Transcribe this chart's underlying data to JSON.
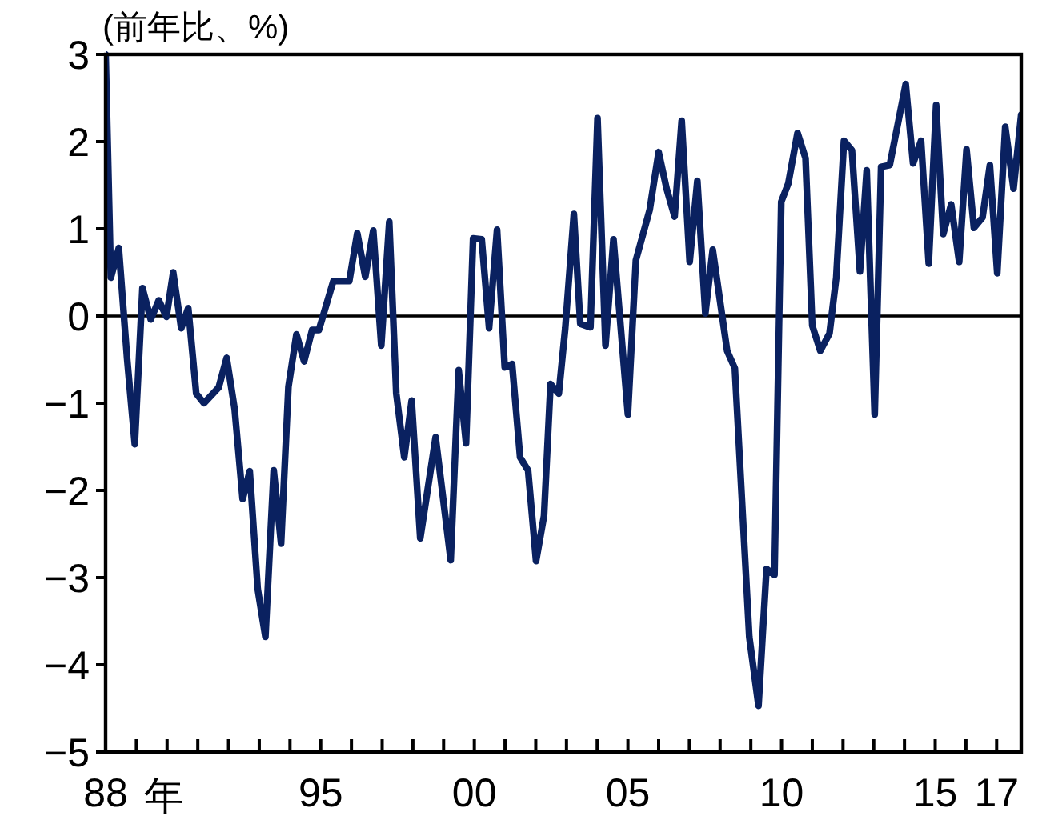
{
  "chart_data": {
    "type": "line",
    "ylabel": "(前年比、%)",
    "xlabel": "年",
    "xlim": [
      1988,
      2017.8
    ],
    "ylim": [
      -5,
      3
    ],
    "xticks": [
      {
        "value": 1988,
        "label": "88"
      },
      {
        "value": 1989,
        "label": null
      },
      {
        "value": 1990,
        "label": null
      },
      {
        "value": 1991,
        "label": null
      },
      {
        "value": 1992,
        "label": null
      },
      {
        "value": 1993,
        "label": null
      },
      {
        "value": 1994,
        "label": null
      },
      {
        "value": 1995,
        "label": "95"
      },
      {
        "value": 1996,
        "label": null
      },
      {
        "value": 1997,
        "label": null
      },
      {
        "value": 1998,
        "label": null
      },
      {
        "value": 1999,
        "label": null
      },
      {
        "value": 2000,
        "label": "00"
      },
      {
        "value": 2001,
        "label": null
      },
      {
        "value": 2002,
        "label": null
      },
      {
        "value": 2003,
        "label": null
      },
      {
        "value": 2004,
        "label": null
      },
      {
        "value": 2005,
        "label": "05"
      },
      {
        "value": 2006,
        "label": null
      },
      {
        "value": 2007,
        "label": null
      },
      {
        "value": 2008,
        "label": null
      },
      {
        "value": 2009,
        "label": null
      },
      {
        "value": 2010,
        "label": "10"
      },
      {
        "value": 2011,
        "label": null
      },
      {
        "value": 2012,
        "label": null
      },
      {
        "value": 2013,
        "label": null
      },
      {
        "value": 2014,
        "label": null
      },
      {
        "value": 2015,
        "label": "15"
      },
      {
        "value": 2016,
        "label": null
      },
      {
        "value": 2017,
        "label": "17"
      }
    ],
    "yticks": [
      -5,
      -4,
      -3,
      -2,
      -1,
      0,
      1,
      2,
      3
    ],
    "ref_lines": [
      {
        "axis": "y",
        "value": 0,
        "color": "#000000"
      }
    ],
    "marker": "none",
    "line_style": "solid",
    "series": [
      {
        "color": "#0a2160",
        "x": [
          1988.0,
          1988.17,
          1988.43,
          1988.7,
          1988.95,
          1989.2,
          1989.47,
          1989.73,
          1989.98,
          1990.2,
          1990.46,
          1990.69,
          1990.95,
          1991.2,
          1991.68,
          1991.94,
          1992.2,
          1992.46,
          1992.69,
          1992.95,
          1993.2,
          1993.47,
          1993.71,
          1993.95,
          1994.21,
          1994.46,
          1994.72,
          1994.94,
          1995.41,
          1995.93,
          1996.19,
          1996.45,
          1996.71,
          1996.97,
          1997.23,
          1997.46,
          1997.72,
          1997.96,
          1998.24,
          1998.74,
          1999.23,
          1999.49,
          1999.73,
          1999.96,
          2000.24,
          2000.48,
          2000.74,
          2000.99,
          2001.23,
          2001.49,
          2001.75,
          2002.01,
          2002.27,
          2002.48,
          2002.75,
          2002.96,
          2003.24,
          2003.45,
          2003.78,
          2004.01,
          2004.27,
          2004.53,
          2005.0,
          2005.26,
          2005.71,
          2006.0,
          2006.26,
          2006.52,
          2006.75,
          2007.01,
          2007.26,
          2007.52,
          2007.76,
          2008.23,
          2008.48,
          2008.95,
          2009.25,
          2009.51,
          2009.77,
          2009.99,
          2010.22,
          2010.52,
          2010.78,
          2011.0,
          2011.26,
          2011.56,
          2011.78,
          2012.03,
          2012.29,
          2012.55,
          2012.77,
          2013.03,
          2013.24,
          2013.52,
          2014.04,
          2014.28,
          2014.54,
          2014.79,
          2015.03,
          2015.26,
          2015.52,
          2015.78,
          2016.02,
          2016.26,
          2016.54,
          2016.78,
          2017.02,
          2017.28,
          2017.55,
          2017.8
        ],
        "values": [
          3.0,
          0.44,
          0.78,
          -0.49,
          -1.47,
          0.32,
          -0.04,
          0.18,
          -0.01,
          0.5,
          -0.14,
          0.09,
          -0.89,
          -1.0,
          -0.82,
          -0.48,
          -1.07,
          -2.1,
          -1.78,
          -3.13,
          -3.68,
          -1.77,
          -2.61,
          -0.81,
          -0.21,
          -0.52,
          -0.16,
          -0.16,
          0.4,
          0.4,
          0.95,
          0.45,
          0.98,
          -0.34,
          1.08,
          -0.89,
          -1.62,
          -0.97,
          -2.55,
          -1.39,
          -2.8,
          -0.62,
          -1.46,
          0.89,
          0.88,
          -0.14,
          0.99,
          -0.59,
          -0.55,
          -1.62,
          -1.77,
          -2.81,
          -2.29,
          -0.78,
          -0.89,
          -0.14,
          1.17,
          -0.09,
          -0.13,
          2.27,
          -0.34,
          0.88,
          -1.13,
          0.64,
          1.22,
          1.88,
          1.46,
          1.14,
          2.24,
          0.62,
          1.55,
          0.03,
          0.76,
          -0.4,
          -0.6,
          -3.68,
          -4.47,
          -2.9,
          -2.97,
          1.31,
          1.52,
          2.1,
          1.81,
          -0.11,
          -0.4,
          -0.2,
          0.44,
          2.01,
          1.9,
          0.51,
          1.67,
          -1.13,
          1.71,
          1.73,
          2.66,
          1.75,
          2.01,
          0.6,
          2.42,
          0.94,
          1.28,
          0.62,
          1.91,
          1.01,
          1.13,
          1.73,
          0.49,
          2.17,
          1.46,
          2.31
        ]
      }
    ]
  }
}
